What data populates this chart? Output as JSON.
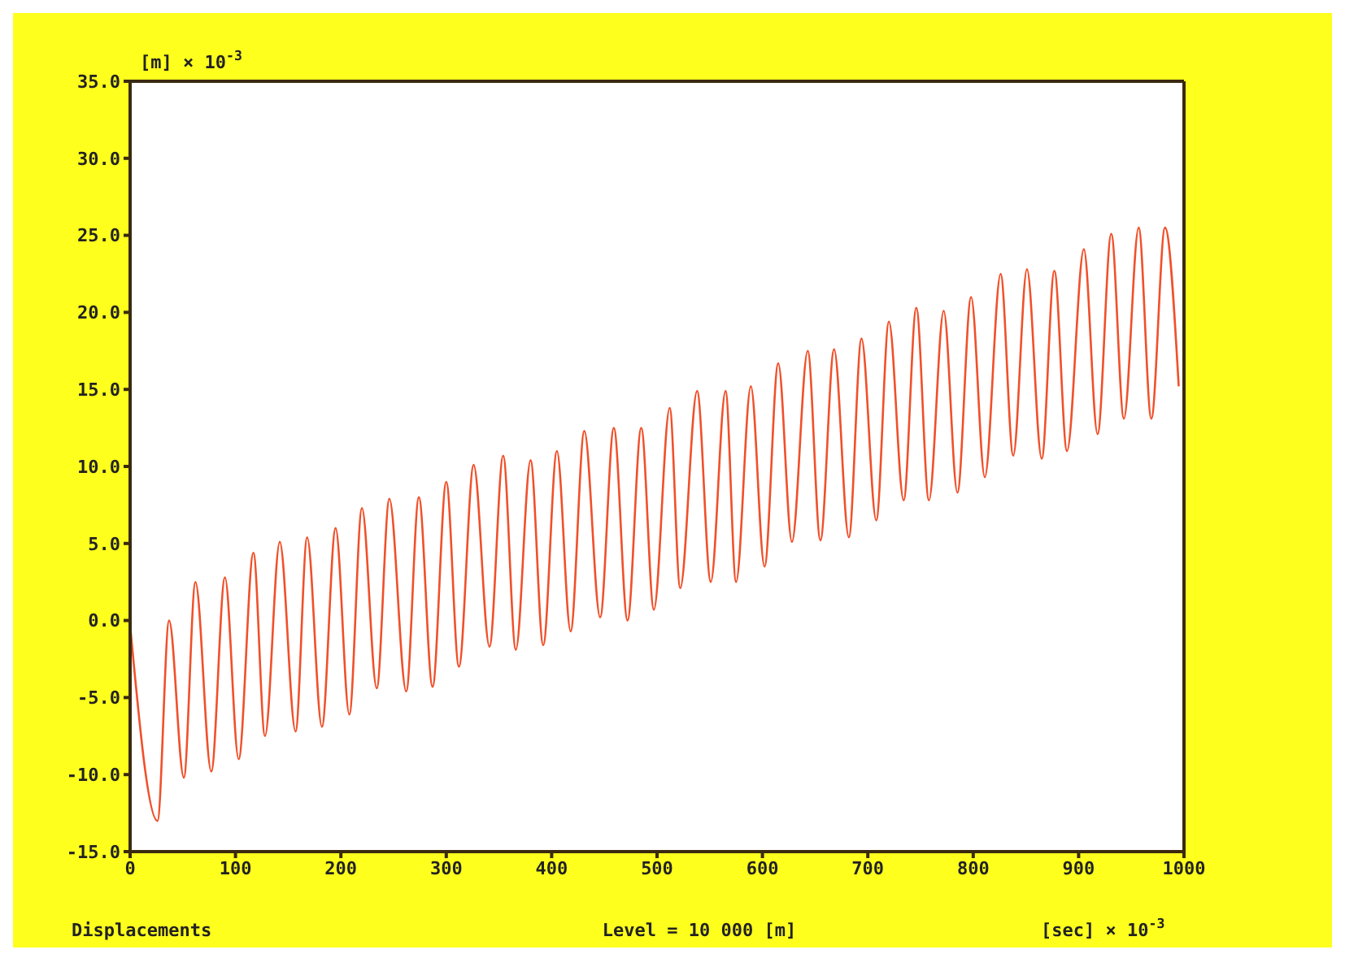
{
  "chart_data": {
    "type": "line",
    "xlabel": "[sec] × 10$^{-3}$",
    "ylabel": "[m] × 10$^{-3}$",
    "annotations": [
      "Displacements",
      "Level = 10 000 [m]"
    ],
    "x": [
      0,
      26,
      37,
      51,
      62,
      77,
      90,
      103,
      117,
      128,
      142,
      157,
      168,
      182,
      195,
      208,
      220,
      234,
      246,
      262,
      274,
      287,
      300,
      312,
      326,
      341,
      354,
      366,
      380,
      392,
      405,
      418,
      431,
      446,
      459,
      472,
      485,
      497,
      512,
      522,
      538,
      551,
      565,
      575,
      589,
      602,
      615,
      628,
      643,
      655,
      668,
      682,
      694,
      708,
      720,
      734,
      746,
      758,
      772,
      785,
      798,
      811,
      826,
      838,
      851,
      865,
      877,
      889,
      905,
      918,
      931,
      943,
      957,
      969,
      982,
      995
    ],
    "series": [
      {
        "color": "#f0502a",
        "values": [
          -0.3,
          -13.0,
          0.0,
          -10.2,
          2.5,
          -9.8,
          2.8,
          -9.0,
          4.4,
          -7.5,
          5.1,
          -7.2,
          5.4,
          -6.9,
          6.0,
          -6.1,
          7.3,
          -4.4,
          7.9,
          -4.6,
          8.0,
          -4.3,
          9.0,
          -3.0,
          10.1,
          -1.7,
          10.7,
          -1.9,
          10.4,
          -1.6,
          11.0,
          -0.7,
          12.3,
          0.2,
          12.5,
          0.0,
          12.5,
          0.7,
          13.8,
          2.1,
          14.9,
          2.5,
          14.9,
          2.5,
          15.2,
          3.5,
          16.7,
          5.1,
          17.5,
          5.2,
          17.6,
          5.4,
          18.3,
          6.5,
          19.4,
          7.8,
          20.3,
          7.8,
          20.1,
          8.3,
          21.0,
          9.3,
          22.5,
          10.7,
          22.8,
          10.5,
          22.7,
          11.0,
          24.1,
          12.1,
          25.1,
          13.1,
          25.5,
          13.1,
          25.5,
          15.2
        ]
      }
    ],
    "xlim": [
      0,
      1000
    ],
    "xticks": [
      0,
      100,
      200,
      300,
      400,
      500,
      600,
      700,
      800,
      900,
      1000
    ],
    "ylim": [
      -15,
      35
    ],
    "yticks": [
      {
        "value": -15,
        "label": "-15.0"
      },
      {
        "value": -10,
        "label": "-10.0"
      },
      {
        "value": -5,
        "label": "-5.0"
      },
      {
        "value": 0,
        "label": "0.0"
      },
      {
        "value": 5,
        "label": "5.0"
      },
      {
        "value": 10,
        "label": "10.0"
      },
      {
        "value": 15,
        "label": "15.0"
      },
      {
        "value": 20,
        "label": "20.0"
      },
      {
        "value": 25,
        "label": "25.0"
      },
      {
        "value": 30,
        "label": "30.0"
      },
      {
        "value": 35,
        "label": "35.0"
      }
    ],
    "marker": "none",
    "line_style": "solid",
    "grid": false,
    "legend": false
  }
}
